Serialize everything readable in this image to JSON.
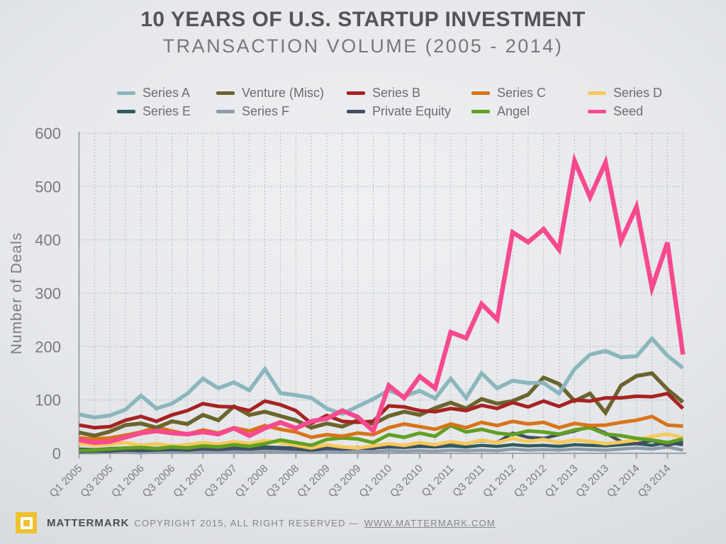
{
  "footer": {
    "brand": "MATTERMARK",
    "copyright": "COPYRIGHT 2015, ALL RIGHT RESERVED —",
    "link": "WWW.MATTERMARK.COM"
  },
  "chart_data": {
    "type": "line",
    "title": "10 YEARS OF U.S. STARTUP INVESTMENT",
    "subtitle": "TRANSACTION VOLUME (2005 - 2014)",
    "xlabel": "",
    "ylabel": "Number of Deals",
    "ylim": [
      0,
      600
    ],
    "yticks": [
      0,
      100,
      200,
      300,
      400,
      500,
      600
    ],
    "grid": "dotted, horizontal and vertical",
    "legend_position": "top",
    "x_label_every": 2,
    "categories": [
      "Q1 2005",
      "Q2 2005",
      "Q3 2005",
      "Q4 2005",
      "Q1 2006",
      "Q2 2006",
      "Q3 2006",
      "Q4 2006",
      "Q1 2007",
      "Q2 2007",
      "Q3 2007",
      "Q4 2007",
      "Q1 2008",
      "Q2 2008",
      "Q3 2008",
      "Q4 2008",
      "Q1 2009",
      "Q2 2009",
      "Q3 2009",
      "Q4 2009",
      "Q1 2010",
      "Q2 2010",
      "Q3 2010",
      "Q4 2010",
      "Q1 2011",
      "Q2 2011",
      "Q3 2011",
      "Q4 2011",
      "Q1 2012",
      "Q2 2012",
      "Q3 2012",
      "Q4 2012",
      "Q1 2013",
      "Q2 2013",
      "Q3 2013",
      "Q4 2013",
      "Q1 2014",
      "Q2 2014",
      "Q3 2014",
      "Q4 2014"
    ],
    "legend_rows": [
      [
        "Series A",
        "Venture (Misc)",
        "Series B",
        "Series C",
        "Series D"
      ],
      [
        "Series E",
        "Series F",
        "Private Equity",
        "Angel",
        "Seed"
      ]
    ],
    "series": [
      {
        "name": "Series F",
        "color": "#8e9cab",
        "width": 4.5,
        "values": [
          1,
          1,
          2,
          2,
          1,
          2,
          2,
          3,
          2,
          3,
          3,
          2,
          4,
          3,
          3,
          2,
          3,
          3,
          4,
          3,
          5,
          4,
          5,
          4,
          6,
          5,
          6,
          5,
          8,
          6,
          7,
          6,
          8,
          7,
          6,
          8,
          10,
          8,
          12,
          6
        ]
      },
      {
        "name": "Series E",
        "color": "#305a60",
        "width": 4.5,
        "values": [
          8,
          7,
          9,
          10,
          8,
          9,
          10,
          9,
          11,
          10,
          12,
          10,
          12,
          11,
          10,
          8,
          10,
          9,
          11,
          10,
          12,
          11,
          13,
          12,
          14,
          12,
          15,
          13,
          16,
          14,
          15,
          13,
          16,
          15,
          14,
          16,
          18,
          15,
          20,
          16
        ]
      },
      {
        "name": "Private Equity",
        "color": "#414f63",
        "width": 4.5,
        "values": [
          3,
          4,
          4,
          6,
          5,
          6,
          7,
          6,
          8,
          7,
          9,
          8,
          10,
          9,
          8,
          6,
          9,
          8,
          10,
          9,
          14,
          12,
          16,
          14,
          20,
          18,
          24,
          20,
          38,
          30,
          28,
          35,
          42,
          50,
          38,
          22,
          18,
          24,
          15,
          22
        ]
      },
      {
        "name": "Series D",
        "color": "#f6c95c",
        "width": 5,
        "values": [
          18,
          15,
          17,
          20,
          15,
          18,
          14,
          16,
          20,
          17,
          22,
          18,
          24,
          20,
          15,
          10,
          16,
          12,
          10,
          14,
          18,
          15,
          20,
          16,
          22,
          18,
          25,
          20,
          28,
          22,
          26,
          20,
          25,
          22,
          18,
          21,
          25,
          32,
          36,
          30
        ]
      },
      {
        "name": "Angel",
        "color": "#61a023",
        "width": 5,
        "values": [
          5,
          6,
          8,
          10,
          11,
          9,
          12,
          10,
          14,
          12,
          16,
          13,
          18,
          25,
          20,
          15,
          26,
          29,
          27,
          20,
          35,
          30,
          38,
          32,
          52,
          40,
          45,
          38,
          35,
          42,
          40,
          36,
          44,
          48,
          36,
          33,
          28,
          25,
          20,
          27
        ]
      },
      {
        "name": "Series C",
        "color": "#d8741a",
        "width": 5,
        "values": [
          29,
          27,
          29,
          34,
          40,
          49,
          42,
          36,
          44,
          38,
          48,
          42,
          52,
          45,
          40,
          30,
          35,
          32,
          38,
          35,
          48,
          55,
          50,
          45,
          55,
          48,
          58,
          52,
          60,
          55,
          58,
          48,
          56,
          52,
          53,
          58,
          62,
          69,
          53,
          51
        ]
      },
      {
        "name": "Venture (Misc)",
        "color": "#6b652e",
        "width": 5.5,
        "values": [
          39,
          33,
          41,
          53,
          56,
          48,
          60,
          55,
          72,
          62,
          88,
          72,
          78,
          70,
          62,
          48,
          56,
          50,
          62,
          55,
          70,
          78,
          72,
          85,
          95,
          84,
          102,
          93,
          98,
          110,
          142,
          130,
          98,
          112,
          76,
          127,
          145,
          150,
          120,
          96
        ]
      },
      {
        "name": "Series B",
        "color": "#a62321",
        "width": 5,
        "values": [
          53,
          48,
          50,
          62,
          69,
          60,
          72,
          80,
          93,
          88,
          87,
          80,
          98,
          91,
          80,
          56,
          71,
          60,
          58,
          60,
          89,
          87,
          80,
          78,
          84,
          80,
          90,
          84,
          95,
          87,
          98,
          88,
          100,
          98,
          104,
          104,
          107,
          106,
          112,
          84
        ]
      },
      {
        "name": "Series A",
        "color": "#8cb6be",
        "width": 5.5,
        "values": [
          73,
          67,
          71,
          82,
          108,
          84,
          93,
          112,
          140,
          122,
          133,
          118,
          158,
          113,
          109,
          104,
          84,
          74,
          88,
          102,
          118,
          107,
          117,
          103,
          140,
          104,
          150,
          122,
          136,
          132,
          132,
          112,
          158,
          185,
          192,
          180,
          182,
          215,
          183,
          160
        ]
      },
      {
        "name": "Seed",
        "color": "#f74a8e",
        "width": 6.5,
        "values": [
          25,
          20,
          22,
          30,
          38,
          42,
          38,
          36,
          40,
          36,
          47,
          33,
          47,
          58,
          47,
          60,
          65,
          80,
          68,
          42,
          127,
          104,
          144,
          122,
          227,
          216,
          280,
          251,
          414,
          396,
          420,
          382,
          548,
          480,
          545,
          398,
          462,
          310,
          395,
          185
        ]
      }
    ]
  }
}
